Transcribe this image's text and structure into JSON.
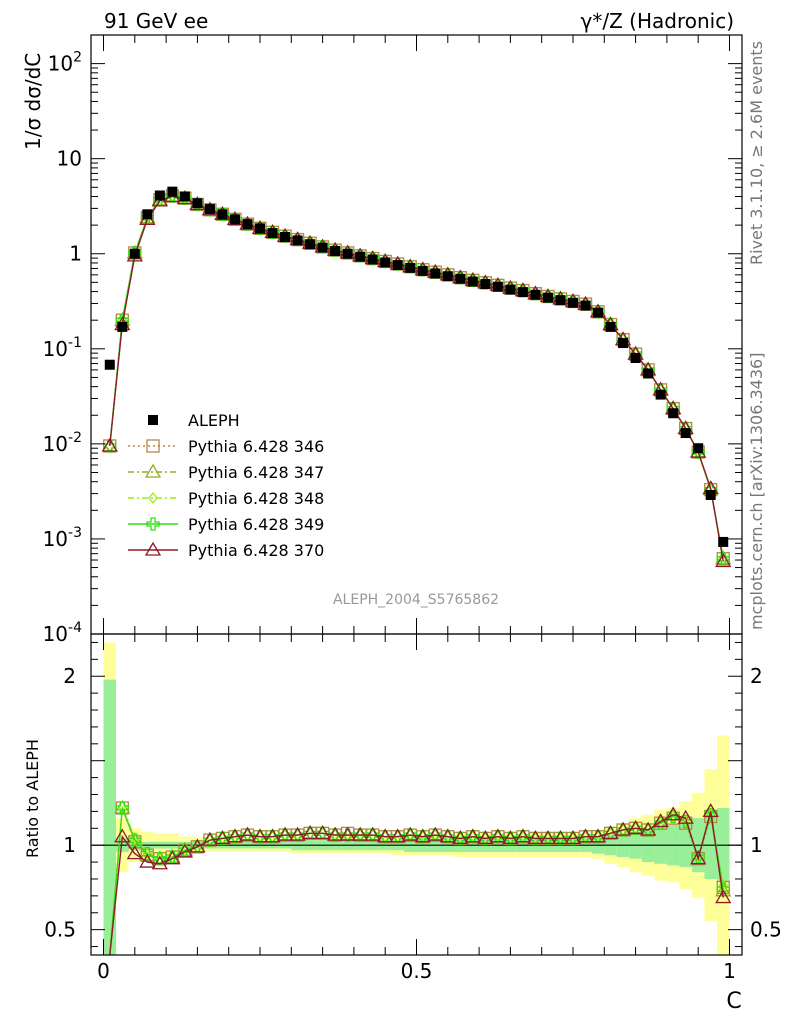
{
  "header": {
    "energy_label": "91 GeV ee",
    "process_label": "γ*/Z (Hadronic)"
  },
  "side_labels": {
    "rivet": "Rivet 3.1.10, ≥ 2.6M events",
    "site": "mcplots.cern.ch [arXiv:1306.3436]"
  },
  "watermark": "ALEPH_2004_S5765862",
  "colors": {
    "data": "#000000",
    "band_inner": "#99ee99",
    "band_outer": "#ffff99",
    "p346": "#b8864b",
    "p347": "#9aa82b",
    "p348": "#99ee11",
    "p349": "#33dd11",
    "p370": "#8b1a2a"
  },
  "chart_data": [
    {
      "type": "line",
      "panel": "main",
      "ylabel": "1/σ dσ/dC",
      "yscale": "log",
      "ylim": [
        0.0001,
        200
      ],
      "xlim": [
        -0.02,
        1.02
      ],
      "y_ticklabels": [
        "10^-4",
        "10^-3",
        "10^-2",
        "10^-1",
        "1",
        "10",
        "10^2"
      ],
      "x": [
        0.01,
        0.03,
        0.05,
        0.07,
        0.09,
        0.11,
        0.13,
        0.15,
        0.17,
        0.19,
        0.21,
        0.23,
        0.25,
        0.27,
        0.29,
        0.31,
        0.33,
        0.35,
        0.37,
        0.39,
        0.41,
        0.43,
        0.45,
        0.47,
        0.49,
        0.51,
        0.53,
        0.55,
        0.57,
        0.59,
        0.61,
        0.63,
        0.65,
        0.67,
        0.69,
        0.71,
        0.73,
        0.75,
        0.77,
        0.79,
        0.81,
        0.83,
        0.85,
        0.87,
        0.89,
        0.91,
        0.93,
        0.95,
        0.97,
        0.99
      ],
      "data": {
        "name": "ALEPH",
        "values": [
          0.068,
          0.17,
          1.0,
          2.6,
          4.1,
          4.5,
          4.0,
          3.4,
          2.95,
          2.6,
          2.3,
          2.05,
          1.85,
          1.65,
          1.5,
          1.38,
          1.26,
          1.16,
          1.07,
          1.0,
          0.93,
          0.87,
          0.81,
          0.76,
          0.71,
          0.66,
          0.62,
          0.58,
          0.545,
          0.51,
          0.48,
          0.45,
          0.42,
          0.395,
          0.37,
          0.345,
          0.325,
          0.305,
          0.285,
          0.24,
          0.17,
          0.115,
          0.08,
          0.055,
          0.033,
          0.021,
          0.013,
          0.009,
          0.0029,
          0.00093
        ]
      },
      "series": [
        {
          "name": "Pythia 6.428 346",
          "marker": "square",
          "dash": "dotted",
          "values": [
            0.0095,
            0.2,
            1.02,
            2.4,
            3.7,
            4.05,
            3.85,
            3.3,
            2.9,
            2.6,
            2.3,
            2.05,
            1.85,
            1.68,
            1.53,
            1.41,
            1.29,
            1.18,
            1.09,
            1.02,
            0.95,
            0.89,
            0.83,
            0.78,
            0.73,
            0.68,
            0.64,
            0.6,
            0.56,
            0.525,
            0.495,
            0.465,
            0.435,
            0.41,
            0.38,
            0.355,
            0.335,
            0.315,
            0.295,
            0.245,
            0.18,
            0.125,
            0.088,
            0.06,
            0.037,
            0.0235,
            0.0145,
            0.0082,
            0.0033,
            0.00062
          ]
        },
        {
          "name": "Pythia 6.428 347",
          "marker": "triangle",
          "dash": "dashdot",
          "values": [
            0.0095,
            0.2,
            1.02,
            2.4,
            3.7,
            4.05,
            3.85,
            3.3,
            2.9,
            2.6,
            2.3,
            2.05,
            1.85,
            1.68,
            1.53,
            1.41,
            1.29,
            1.18,
            1.09,
            1.02,
            0.95,
            0.89,
            0.83,
            0.78,
            0.73,
            0.68,
            0.64,
            0.6,
            0.56,
            0.525,
            0.495,
            0.465,
            0.435,
            0.41,
            0.38,
            0.355,
            0.335,
            0.315,
            0.295,
            0.245,
            0.18,
            0.125,
            0.088,
            0.06,
            0.037,
            0.0235,
            0.0145,
            0.0082,
            0.0033,
            0.00062
          ]
        },
        {
          "name": "Pythia 6.428 348",
          "marker": "diamond",
          "dash": "dashdot",
          "values": [
            0.0095,
            0.2,
            1.02,
            2.4,
            3.7,
            4.05,
            3.85,
            3.3,
            2.9,
            2.6,
            2.3,
            2.05,
            1.85,
            1.68,
            1.53,
            1.41,
            1.29,
            1.18,
            1.09,
            1.02,
            0.95,
            0.89,
            0.83,
            0.78,
            0.73,
            0.68,
            0.64,
            0.6,
            0.56,
            0.525,
            0.495,
            0.465,
            0.435,
            0.41,
            0.38,
            0.355,
            0.335,
            0.315,
            0.295,
            0.245,
            0.18,
            0.125,
            0.088,
            0.06,
            0.037,
            0.0235,
            0.0145,
            0.0082,
            0.0033,
            0.00062
          ]
        },
        {
          "name": "Pythia 6.428 349",
          "marker": "cross",
          "dash": "solid",
          "values": [
            0.0095,
            0.2,
            1.02,
            2.4,
            3.7,
            4.05,
            3.85,
            3.3,
            2.9,
            2.6,
            2.3,
            2.05,
            1.85,
            1.68,
            1.53,
            1.41,
            1.29,
            1.18,
            1.09,
            1.02,
            0.95,
            0.89,
            0.83,
            0.78,
            0.73,
            0.68,
            0.64,
            0.6,
            0.56,
            0.525,
            0.495,
            0.465,
            0.435,
            0.41,
            0.38,
            0.355,
            0.335,
            0.315,
            0.295,
            0.245,
            0.18,
            0.125,
            0.088,
            0.06,
            0.037,
            0.0235,
            0.0145,
            0.0082,
            0.0033,
            0.00062
          ]
        },
        {
          "name": "Pythia 6.428 370",
          "marker": "triangle-open",
          "dash": "solid",
          "values": [
            0.0095,
            0.18,
            0.95,
            2.3,
            3.6,
            4.0,
            3.8,
            3.3,
            2.9,
            2.6,
            2.3,
            2.05,
            1.85,
            1.68,
            1.53,
            1.41,
            1.29,
            1.18,
            1.09,
            1.02,
            0.95,
            0.89,
            0.83,
            0.78,
            0.73,
            0.68,
            0.64,
            0.6,
            0.56,
            0.525,
            0.495,
            0.465,
            0.435,
            0.41,
            0.38,
            0.355,
            0.335,
            0.315,
            0.295,
            0.245,
            0.18,
            0.125,
            0.088,
            0.06,
            0.037,
            0.0235,
            0.0145,
            0.0082,
            0.0034,
            0.00058
          ]
        }
      ],
      "legend_position": "left-middle"
    },
    {
      "type": "line",
      "panel": "ratio",
      "ylabel": "Ratio to ALEPH",
      "xlabel": "C",
      "ylim": [
        0.35,
        2.25
      ],
      "xlim": [
        -0.02,
        1.02
      ],
      "x_ticklabels": [
        "0",
        "0.5",
        "1"
      ],
      "y_ticklabels": [
        "0.5",
        "1",
        "2"
      ],
      "band_inner": [
        [
          0.02,
          1.98
        ],
        [
          0.96,
          1.04
        ],
        [
          0.97,
          1.02
        ],
        [
          0.97,
          1.02
        ],
        [
          0.98,
          1.02
        ],
        [
          0.98,
          1.02
        ],
        [
          0.98,
          1.02
        ],
        [
          0.98,
          1.02
        ],
        [
          0.98,
          1.02
        ],
        [
          0.98,
          1.02
        ],
        [
          0.98,
          1.02
        ],
        [
          0.98,
          1.02
        ],
        [
          0.98,
          1.02
        ],
        [
          0.98,
          1.02
        ],
        [
          0.98,
          1.02
        ],
        [
          0.97,
          1.03
        ],
        [
          0.97,
          1.03
        ],
        [
          0.97,
          1.03
        ],
        [
          0.97,
          1.03
        ],
        [
          0.97,
          1.03
        ],
        [
          0.97,
          1.03
        ],
        [
          0.97,
          1.03
        ],
        [
          0.97,
          1.03
        ],
        [
          0.97,
          1.03
        ],
        [
          0.96,
          1.04
        ],
        [
          0.96,
          1.04
        ],
        [
          0.96,
          1.04
        ],
        [
          0.96,
          1.04
        ],
        [
          0.96,
          1.04
        ],
        [
          0.96,
          1.04
        ],
        [
          0.96,
          1.04
        ],
        [
          0.96,
          1.04
        ],
        [
          0.96,
          1.04
        ],
        [
          0.96,
          1.04
        ],
        [
          0.96,
          1.04
        ],
        [
          0.96,
          1.04
        ],
        [
          0.96,
          1.04
        ],
        [
          0.96,
          1.04
        ],
        [
          0.96,
          1.04
        ],
        [
          0.95,
          1.05
        ],
        [
          0.94,
          1.06
        ],
        [
          0.93,
          1.07
        ],
        [
          0.92,
          1.08
        ],
        [
          0.9,
          1.1
        ],
        [
          0.89,
          1.11
        ],
        [
          0.88,
          1.12
        ],
        [
          0.87,
          1.13
        ],
        [
          0.84,
          1.16
        ],
        [
          0.8,
          1.2
        ],
        [
          0.78,
          1.22
        ]
      ],
      "band_outer": [
        [
          0.0,
          2.2
        ],
        [
          0.84,
          1.16
        ],
        [
          0.9,
          1.1
        ],
        [
          0.92,
          1.08
        ],
        [
          0.93,
          1.07
        ],
        [
          0.93,
          1.07
        ],
        [
          0.95,
          1.05
        ],
        [
          0.95,
          1.05
        ],
        [
          0.96,
          1.04
        ],
        [
          0.96,
          1.04
        ],
        [
          0.96,
          1.04
        ],
        [
          0.96,
          1.04
        ],
        [
          0.96,
          1.04
        ],
        [
          0.96,
          1.04
        ],
        [
          0.96,
          1.04
        ],
        [
          0.95,
          1.05
        ],
        [
          0.95,
          1.05
        ],
        [
          0.95,
          1.05
        ],
        [
          0.95,
          1.05
        ],
        [
          0.95,
          1.05
        ],
        [
          0.95,
          1.05
        ],
        [
          0.95,
          1.05
        ],
        [
          0.95,
          1.05
        ],
        [
          0.94,
          1.06
        ],
        [
          0.94,
          1.06
        ],
        [
          0.94,
          1.06
        ],
        [
          0.94,
          1.06
        ],
        [
          0.94,
          1.06
        ],
        [
          0.93,
          1.07
        ],
        [
          0.93,
          1.07
        ],
        [
          0.93,
          1.07
        ],
        [
          0.93,
          1.07
        ],
        [
          0.93,
          1.07
        ],
        [
          0.93,
          1.07
        ],
        [
          0.93,
          1.07
        ],
        [
          0.93,
          1.07
        ],
        [
          0.93,
          1.07
        ],
        [
          0.93,
          1.07
        ],
        [
          0.93,
          1.07
        ],
        [
          0.92,
          1.08
        ],
        [
          0.89,
          1.11
        ],
        [
          0.87,
          1.13
        ],
        [
          0.84,
          1.16
        ],
        [
          0.82,
          1.18
        ],
        [
          0.79,
          1.21
        ],
        [
          0.78,
          1.22
        ],
        [
          0.74,
          1.26
        ],
        [
          0.69,
          1.31
        ],
        [
          0.55,
          1.45
        ],
        [
          0.35,
          1.65
        ]
      ],
      "series": [
        {
          "name": "Pythia 6.428 346",
          "values": [
            0.14,
            1.22,
            1.02,
            0.94,
            0.92,
            0.93,
            0.97,
            0.99,
            1.03,
            1.04,
            1.05,
            1.06,
            1.05,
            1.05,
            1.06,
            1.06,
            1.07,
            1.07,
            1.06,
            1.07,
            1.06,
            1.06,
            1.05,
            1.05,
            1.06,
            1.05,
            1.06,
            1.05,
            1.04,
            1.05,
            1.04,
            1.05,
            1.04,
            1.05,
            1.04,
            1.04,
            1.04,
            1.04,
            1.05,
            1.05,
            1.07,
            1.09,
            1.1,
            1.09,
            1.13,
            1.16,
            1.13,
            0.92,
            1.17,
            0.75
          ]
        },
        {
          "name": "Pythia 6.428 347",
          "values": [
            0.14,
            1.22,
            1.03,
            0.94,
            0.92,
            0.93,
            0.97,
            0.99,
            1.03,
            1.04,
            1.05,
            1.06,
            1.05,
            1.05,
            1.06,
            1.06,
            1.07,
            1.07,
            1.06,
            1.06,
            1.06,
            1.06,
            1.05,
            1.05,
            1.06,
            1.05,
            1.06,
            1.05,
            1.04,
            1.05,
            1.04,
            1.05,
            1.04,
            1.05,
            1.04,
            1.04,
            1.04,
            1.04,
            1.05,
            1.05,
            1.07,
            1.09,
            1.1,
            1.09,
            1.14,
            1.18,
            1.16,
            0.92,
            1.2,
            0.73
          ]
        },
        {
          "name": "Pythia 6.428 348",
          "values": [
            0.14,
            1.23,
            1.04,
            0.95,
            0.92,
            0.93,
            0.97,
            0.99,
            1.03,
            1.04,
            1.05,
            1.06,
            1.05,
            1.05,
            1.06,
            1.06,
            1.07,
            1.07,
            1.06,
            1.06,
            1.06,
            1.06,
            1.05,
            1.05,
            1.06,
            1.05,
            1.06,
            1.05,
            1.04,
            1.05,
            1.04,
            1.05,
            1.04,
            1.05,
            1.04,
            1.04,
            1.04,
            1.04,
            1.05,
            1.05,
            1.07,
            1.09,
            1.1,
            1.09,
            1.13,
            1.17,
            1.14,
            0.93,
            1.18,
            0.76
          ]
        },
        {
          "name": "Pythia 6.428 349",
          "values": [
            0.14,
            1.22,
            1.03,
            0.95,
            0.92,
            0.93,
            0.97,
            0.99,
            1.03,
            1.04,
            1.05,
            1.06,
            1.05,
            1.05,
            1.06,
            1.06,
            1.07,
            1.07,
            1.06,
            1.06,
            1.06,
            1.06,
            1.05,
            1.05,
            1.06,
            1.05,
            1.06,
            1.05,
            1.04,
            1.05,
            1.04,
            1.05,
            1.04,
            1.05,
            1.04,
            1.04,
            1.04,
            1.04,
            1.05,
            1.05,
            1.07,
            1.09,
            1.1,
            1.09,
            1.13,
            1.17,
            1.14,
            0.93,
            1.18,
            0.74
          ]
        },
        {
          "name": "Pythia 6.428 370",
          "values": [
            0.14,
            1.05,
            0.95,
            0.9,
            0.89,
            0.92,
            0.96,
            0.99,
            1.03,
            1.04,
            1.05,
            1.06,
            1.05,
            1.05,
            1.06,
            1.06,
            1.07,
            1.07,
            1.06,
            1.06,
            1.06,
            1.06,
            1.05,
            1.05,
            1.06,
            1.05,
            1.06,
            1.05,
            1.04,
            1.05,
            1.04,
            1.05,
            1.04,
            1.05,
            1.04,
            1.04,
            1.04,
            1.04,
            1.05,
            1.05,
            1.07,
            1.09,
            1.1,
            1.09,
            1.14,
            1.18,
            1.16,
            0.92,
            1.2,
            0.69
          ]
        }
      ]
    }
  ]
}
